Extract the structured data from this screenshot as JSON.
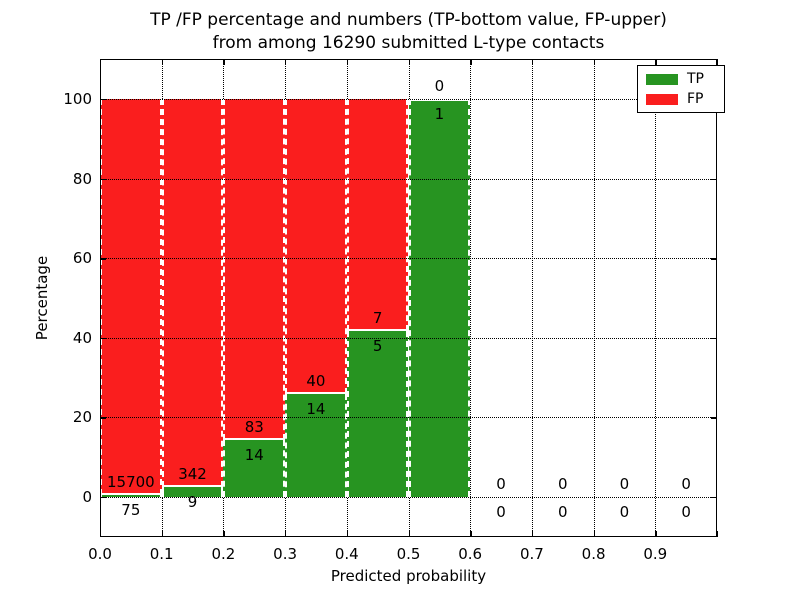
{
  "title": {
    "line1": "TP /FP percentage and numbers (TP-bottom value, FP-upper)",
    "line2": "from among 16290 submitted L-type contacts"
  },
  "chart_data": {
    "type": "bar",
    "stacked": true,
    "title_lines": [
      "TP /FP percentage and numbers (TP-bottom value, FP-upper)",
      "from among 16290 submitted L-type contacts"
    ],
    "xlabel": "Predicted probability",
    "ylabel": "Percentage",
    "total_submitted": 16290,
    "xlim": [
      0,
      1.0
    ],
    "ylim": [
      -10,
      110
    ],
    "xticks": [
      "0.0",
      "0.1",
      "0.2",
      "0.3",
      "0.4",
      "0.5",
      "0.6",
      "0.7",
      "0.8",
      "0.9"
    ],
    "yticks": [
      0,
      20,
      40,
      60,
      80,
      100
    ],
    "grid": "dotted",
    "colors": {
      "tp": "#279421",
      "fp": "#fa1e1e",
      "bar_edge": "#ffffff",
      "grid": "#000000"
    },
    "legend": {
      "position": "upper-right",
      "entries": [
        {
          "label": "TP",
          "color": "#279421"
        },
        {
          "label": "FP",
          "color": "#fa1e1e"
        }
      ]
    },
    "bins": [
      {
        "x0": 0.0,
        "x1": 0.1,
        "tp": 75,
        "fp": 15700,
        "tp_pct": 0.48,
        "fp_pct": 99.52
      },
      {
        "x0": 0.1,
        "x1": 0.2,
        "tp": 9,
        "fp": 342,
        "tp_pct": 2.56,
        "fp_pct": 97.44
      },
      {
        "x0": 0.2,
        "x1": 0.3,
        "tp": 14,
        "fp": 83,
        "tp_pct": 14.43,
        "fp_pct": 85.57
      },
      {
        "x0": 0.3,
        "x1": 0.4,
        "tp": 14,
        "fp": 40,
        "tp_pct": 25.93,
        "fp_pct": 74.07
      },
      {
        "x0": 0.4,
        "x1": 0.5,
        "tp": 5,
        "fp": 7,
        "tp_pct": 41.67,
        "fp_pct": 58.33
      },
      {
        "x0": 0.5,
        "x1": 0.6,
        "tp": 1,
        "fp": 0,
        "tp_pct": 100.0,
        "fp_pct": 0.0
      },
      {
        "x0": 0.6,
        "x1": 0.7,
        "tp": 0,
        "fp": 0,
        "tp_pct": 0,
        "fp_pct": 0
      },
      {
        "x0": 0.7,
        "x1": 0.8,
        "tp": 0,
        "fp": 0,
        "tp_pct": 0,
        "fp_pct": 0
      },
      {
        "x0": 0.8,
        "x1": 0.9,
        "tp": 0,
        "fp": 0,
        "tp_pct": 0,
        "fp_pct": 0
      },
      {
        "x0": 0.9,
        "x1": 1.0,
        "tp": 0,
        "fp": 0,
        "tp_pct": 0,
        "fp_pct": 0
      }
    ]
  }
}
